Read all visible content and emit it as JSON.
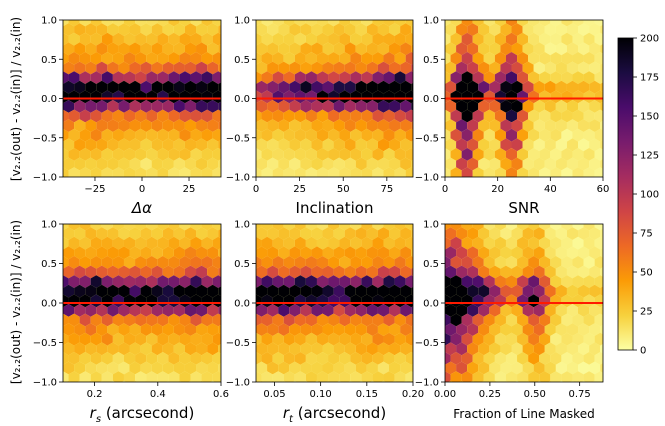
{
  "figure": {
    "ylabel": "[v₂.₂(out) - v₂.₂(in)] / v₂.₂(in)"
  },
  "colorbar": {
    "label": "",
    "ticks": [
      "0",
      "25",
      "50",
      "75",
      "100",
      "125",
      "150",
      "175",
      "200"
    ],
    "range": [
      0,
      200
    ],
    "colormap": "inferno_r",
    "colors": [
      "#fcffa4",
      "#f7d13d",
      "#fb9b06",
      "#ed6925",
      "#cf4446",
      "#a52c60",
      "#781c6d",
      "#4a0c6b",
      "#1b0c41",
      "#000004"
    ]
  },
  "reference_line": {
    "y": 0.0,
    "color": "#ff1a00"
  },
  "chart_data": [
    {
      "type": "hexbin",
      "title": "",
      "xlabel": "Δα",
      "ylabel": "",
      "xlim": [
        -42,
        42
      ],
      "ylim": [
        -1.0,
        1.0
      ],
      "xticks": [
        -25,
        0,
        25
      ],
      "xtick_labels": [
        "−25",
        "0",
        "25"
      ],
      "yticks": [
        -1.0,
        -0.5,
        0.0,
        0.5,
        1.0
      ],
      "ytick_labels": [
        "−1.0",
        "−0.5",
        "0.0",
        "0.5",
        "1.0"
      ],
      "peak_y": 0.08,
      "profile": "uniform"
    },
    {
      "type": "hexbin",
      "title": "",
      "xlabel": "Inclination",
      "ylabel": "",
      "xlim": [
        0,
        90
      ],
      "ylim": [
        -1.0,
        1.0
      ],
      "xticks": [
        0,
        25,
        50,
        75
      ],
      "xtick_labels": [
        "0",
        "25",
        "50",
        "75"
      ],
      "yticks": [
        -1.0,
        -0.5,
        0.0,
        0.5,
        1.0
      ],
      "ytick_labels": [
        "−1.0",
        "−0.5",
        "0.0",
        "0.5",
        "1.0"
      ],
      "peak_y": 0.08,
      "profile": "increasing"
    },
    {
      "type": "hexbin",
      "title": "",
      "xlabel": "SNR",
      "ylabel": "",
      "xlim": [
        0,
        60
      ],
      "ylim": [
        -1.0,
        1.0
      ],
      "xticks": [
        0,
        20,
        40,
        60
      ],
      "xtick_labels": [
        "0",
        "20",
        "40",
        "60"
      ],
      "yticks": [
        -1.0,
        -0.5,
        0.0,
        0.5,
        1.0
      ],
      "ytick_labels": [
        "−1.0",
        "−0.5",
        "0.0",
        "0.5",
        "1.0"
      ],
      "peak_y": 0.08,
      "profile": "snr"
    },
    {
      "type": "hexbin",
      "title": "",
      "xlabel": "r_s (arcsecond)",
      "ylabel": "",
      "xlim": [
        0.1,
        0.6
      ],
      "ylim": [
        -1.0,
        1.0
      ],
      "xticks": [
        0.2,
        0.4,
        0.6
      ],
      "xtick_labels": [
        "0.2",
        "0.4",
        "0.6"
      ],
      "yticks": [
        -1.0,
        -0.5,
        0.0,
        0.5,
        1.0
      ],
      "ytick_labels": [
        "−1.0",
        "−0.5",
        "0.0",
        "0.5",
        "1.0"
      ],
      "peak_y": 0.1,
      "profile": "uniform"
    },
    {
      "type": "hexbin",
      "title": "",
      "xlabel": "r_t (arcsecond)",
      "ylabel": "",
      "xlim": [
        0.03,
        0.2
      ],
      "ylim": [
        -1.0,
        1.0
      ],
      "xticks": [
        0.05,
        0.1,
        0.15,
        0.2
      ],
      "xtick_labels": [
        "0.05",
        "0.10",
        "0.15",
        "0.20"
      ],
      "yticks": [
        -1.0,
        -0.5,
        0.0,
        0.5,
        1.0
      ],
      "ytick_labels": [
        "−1.0",
        "−0.5",
        "0.0",
        "0.5",
        "1.0"
      ],
      "peak_y": 0.1,
      "profile": "uniform"
    },
    {
      "type": "hexbin",
      "title": "",
      "xlabel": "Fraction of Line Masked",
      "ylabel": "",
      "xlim": [
        0.0,
        0.88
      ],
      "ylim": [
        -1.0,
        1.0
      ],
      "xticks": [
        0.0,
        0.25,
        0.5,
        0.75
      ],
      "xtick_labels": [
        "0.00",
        "0.25",
        "0.50",
        "0.75"
      ],
      "yticks": [
        -1.0,
        -0.5,
        0.0,
        0.5,
        1.0
      ],
      "ytick_labels": [
        "−1.0",
        "−0.5",
        "0.0",
        "0.5",
        "1.0"
      ],
      "peak_y": 0.12,
      "profile": "masked"
    }
  ]
}
